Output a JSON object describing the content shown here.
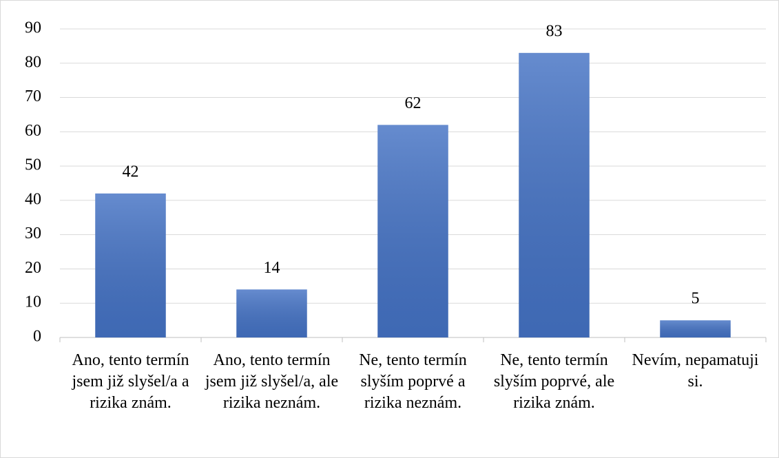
{
  "chart_data": {
    "type": "bar",
    "categories": [
      "Ano, tento termín jsem již slyšel/a a rizika znám.",
      "Ano, tento termín jsem již slyšel/a, ale rizika neznám.",
      "Ne, tento termín slyším poprvé a rizika neznám.",
      "Ne, tento termín slyším poprvé, ale rizika znám.",
      "Nevím, nepamatuji si."
    ],
    "values": [
      42,
      14,
      62,
      83,
      5
    ],
    "color": "#4472c4",
    "ylim": [
      0,
      90
    ],
    "yticks": [
      0,
      10,
      20,
      30,
      40,
      50,
      60,
      70,
      80,
      90
    ],
    "grid": true
  }
}
